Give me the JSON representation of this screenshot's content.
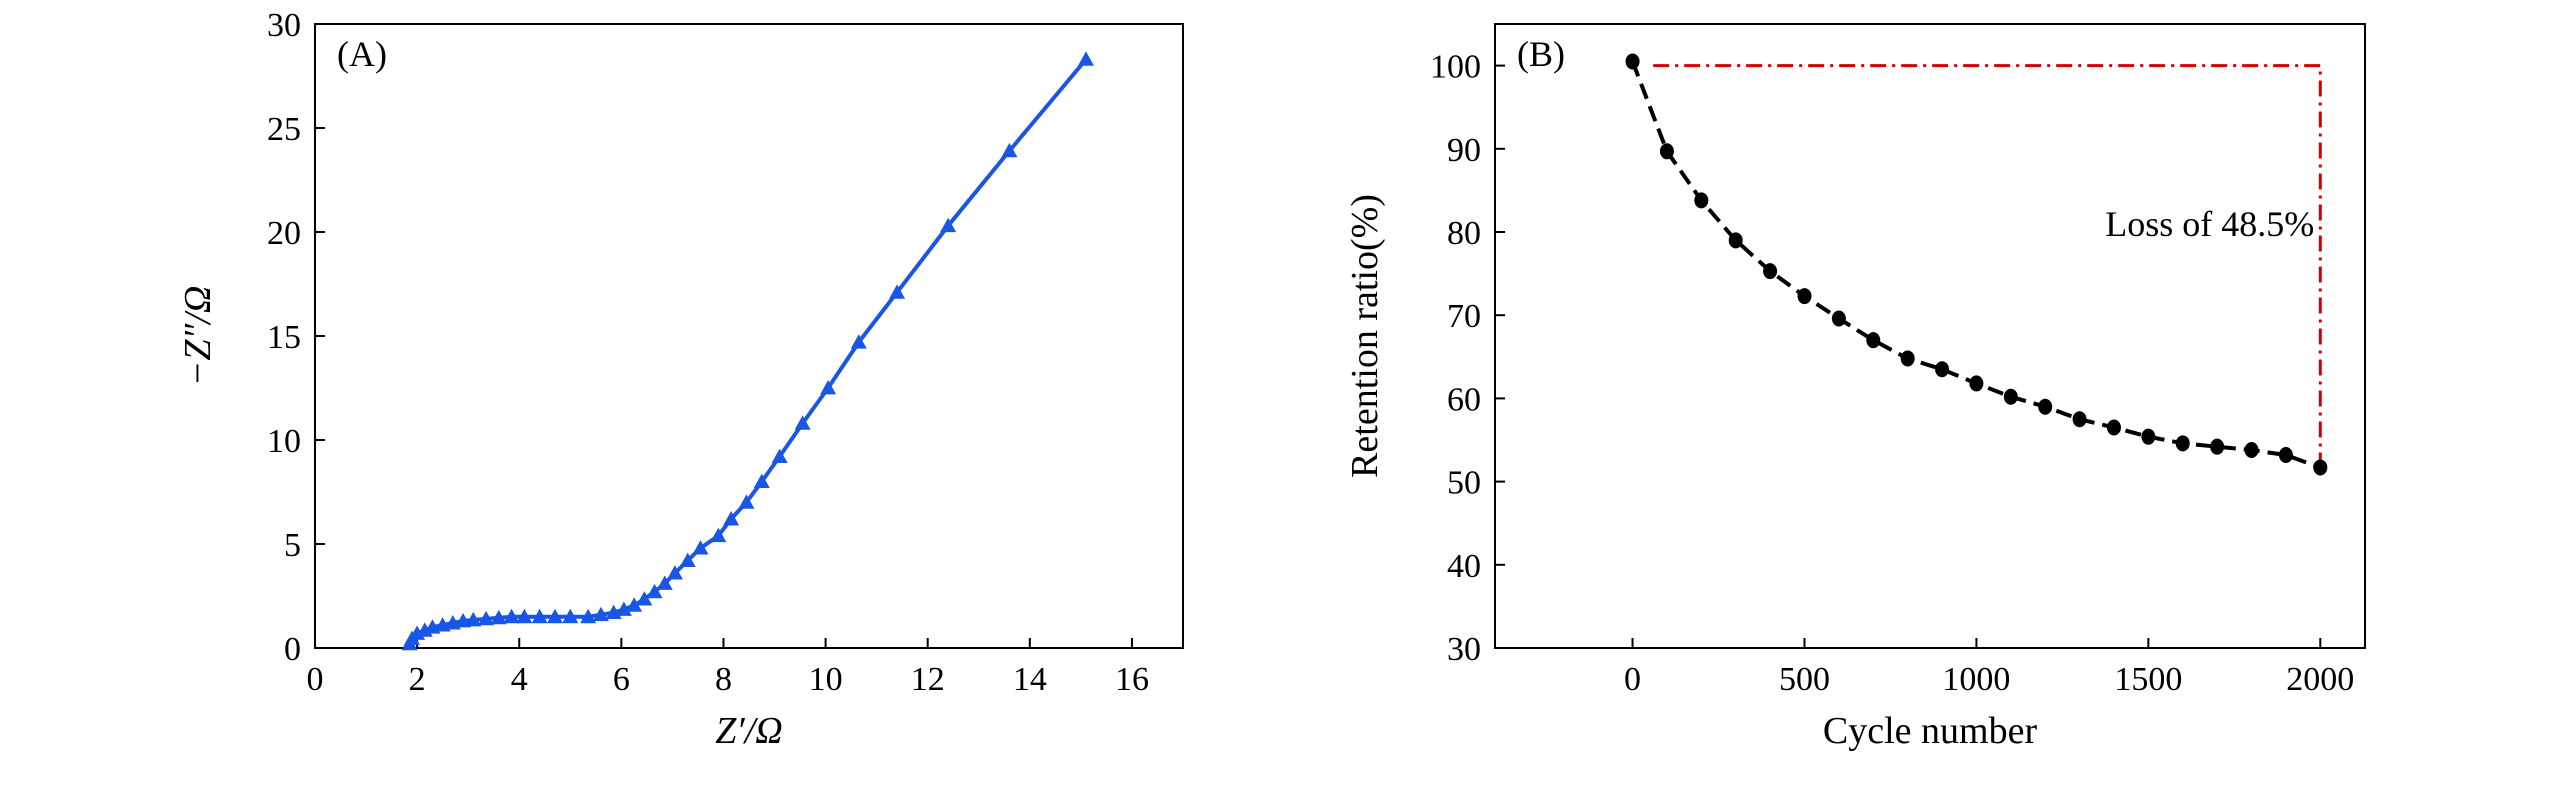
{
  "colors": {
    "impedance": "#1a56e6",
    "retention": "#000000",
    "loss_line": "#d40000",
    "axis": "#000000"
  },
  "chart_data": [
    {
      "type": "line",
      "panel_label": "(A)",
      "xlabel": "Z′/Ω",
      "ylabel": "−Z″/Ω",
      "xlim": [
        0,
        17
      ],
      "ylim": [
        0,
        30
      ],
      "xticks": [
        0,
        2,
        4,
        6,
        8,
        10,
        12,
        14,
        16
      ],
      "yticks": [
        0,
        5,
        10,
        15,
        20,
        25,
        30
      ],
      "marker": "triangle",
      "series": [
        {
          "x": [
            1.85,
            1.9,
            2.0,
            2.15,
            2.3,
            2.5,
            2.7,
            2.9,
            3.1,
            3.35,
            3.6,
            3.85,
            4.1,
            4.4,
            4.7,
            5.0,
            5.35,
            5.6,
            5.85,
            6.05,
            6.25,
            6.45,
            6.65,
            6.85,
            7.05,
            7.3,
            7.55,
            7.9,
            8.15,
            8.45,
            8.75,
            9.1,
            9.55,
            10.05,
            10.65,
            11.4,
            12.4,
            13.6,
            15.1
          ],
          "y": [
            0.2,
            0.45,
            0.7,
            0.85,
            1.0,
            1.1,
            1.2,
            1.3,
            1.35,
            1.4,
            1.45,
            1.5,
            1.5,
            1.5,
            1.5,
            1.5,
            1.5,
            1.6,
            1.7,
            1.85,
            2.05,
            2.35,
            2.7,
            3.1,
            3.6,
            4.2,
            4.8,
            5.4,
            6.2,
            7.0,
            8.0,
            9.2,
            10.8,
            12.5,
            14.7,
            17.1,
            20.3,
            23.9,
            28.3
          ]
        }
      ]
    },
    {
      "type": "line",
      "panel_label": "(B)",
      "xlabel": "Cycle number",
      "ylabel": "Retention ratio(%)",
      "xlim": [
        -400,
        2130
      ],
      "ylim": [
        30,
        105
      ],
      "xticks": [
        0,
        500,
        1000,
        1500,
        2000
      ],
      "yticks": [
        30,
        40,
        50,
        60,
        70,
        80,
        90,
        100
      ],
      "marker": "circle",
      "line_style": "dashed",
      "series": [
        {
          "x": [
            0,
            100,
            200,
            300,
            400,
            500,
            600,
            700,
            800,
            900,
            1000,
            1100,
            1200,
            1300,
            1400,
            1500,
            1600,
            1700,
            1800,
            1900,
            2000
          ],
          "y": [
            100.5,
            89.7,
            83.8,
            79.0,
            75.3,
            72.3,
            69.6,
            67.0,
            64.8,
            63.5,
            61.8,
            60.2,
            59.0,
            57.5,
            56.5,
            55.4,
            54.6,
            54.2,
            53.8,
            53.2,
            51.7
          ]
        }
      ],
      "annotation": {
        "text": "Loss of 48.5%",
        "line_y": 100,
        "line_x_start": 60,
        "line_x_end": 2000,
        "drop_to_y": 52
      }
    }
  ]
}
